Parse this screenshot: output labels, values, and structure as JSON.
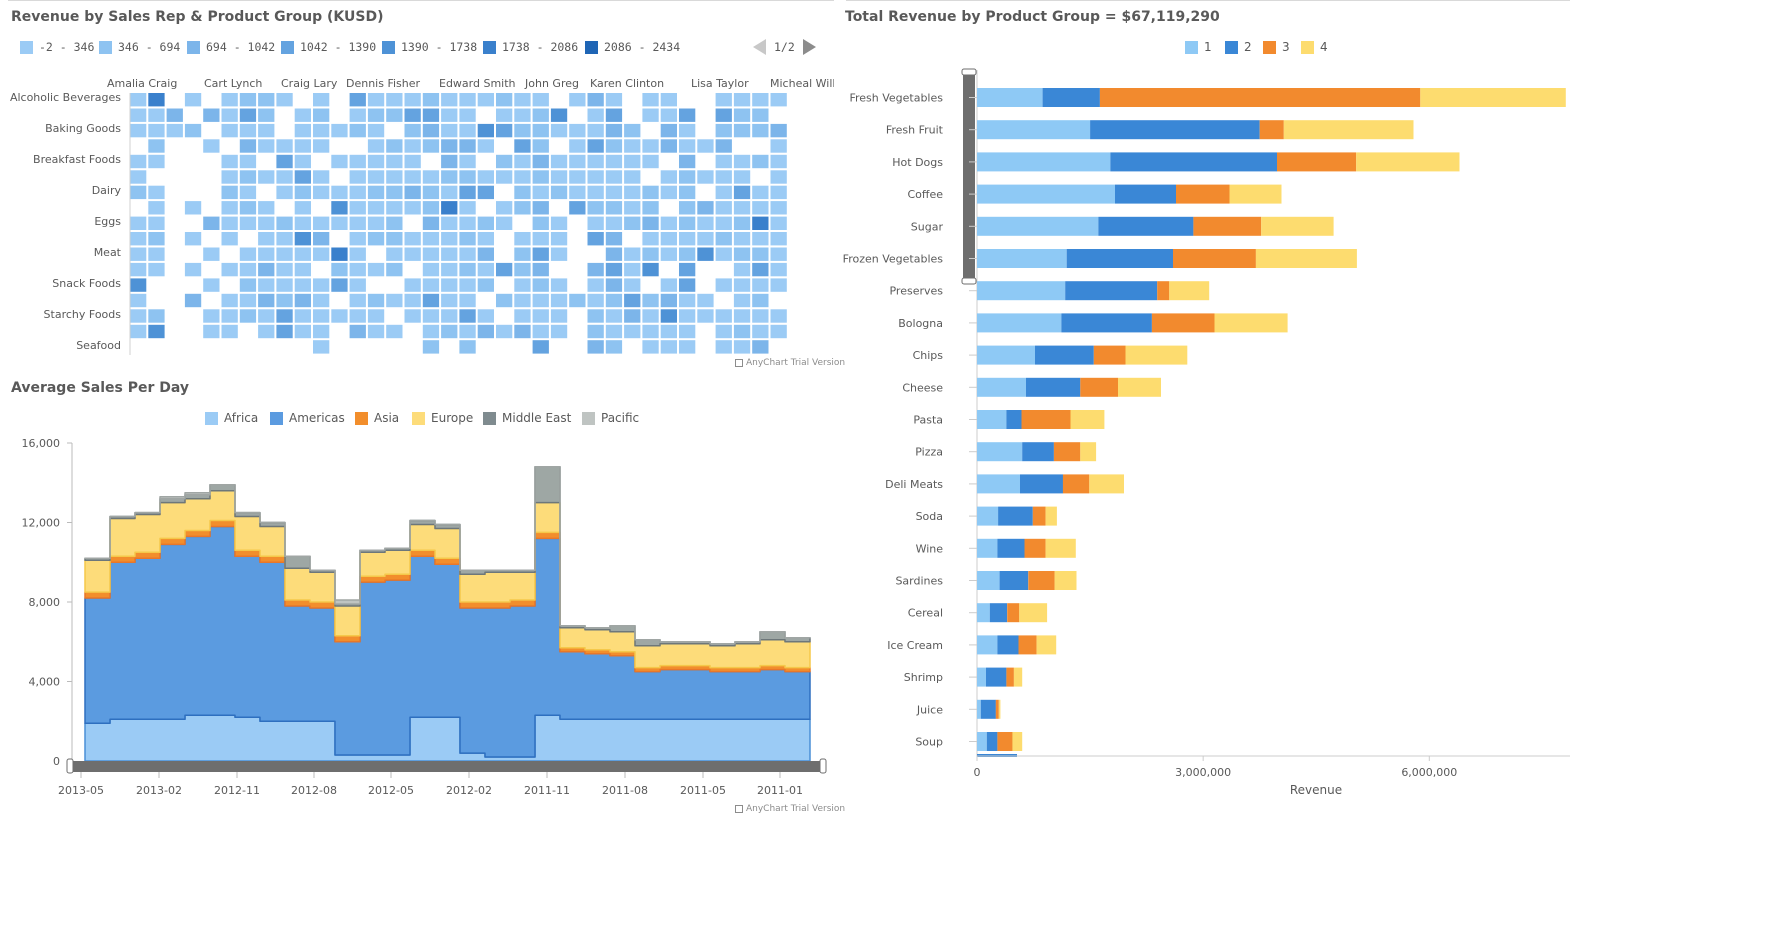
{
  "heatmap": {
    "title": "Revenue by Sales Rep & Product Group (KUSD)",
    "legend": [
      {
        "label": "-2 - 346",
        "color": "#9bcbf5"
      },
      {
        "label": "346 - 694",
        "color": "#8ec3f1"
      },
      {
        "label": "694 - 1042",
        "color": "#7cb5ea"
      },
      {
        "label": "1042 - 1390",
        "color": "#64a3e0"
      },
      {
        "label": "1390 - 1738",
        "color": "#4e92d6"
      },
      {
        "label": "1738 - 2086",
        "color": "#3a80cc"
      },
      {
        "label": "2086 - 2434",
        "color": "#1f65b5"
      }
    ],
    "pager": "1/2",
    "reps": [
      "Amalia Craig",
      "Cart Lynch",
      "Craig Lary",
      "Dennis Fisher",
      "Edward Smith",
      "John Greg",
      "Karen Clinton",
      "Lisa Taylor",
      "Micheal William"
    ],
    "groups": [
      "Alcoholic Beverages",
      "Baking Goods",
      "Breakfast Foods",
      "Dairy",
      "Eggs",
      "Meat",
      "Snack Foods",
      "Starchy Foods",
      "Seafood"
    ],
    "watermark": "AnyChart Trial Version"
  },
  "area": {
    "title": "Average Sales Per Day",
    "legend": [
      {
        "label": "Africa",
        "color": "#9bcbf5"
      },
      {
        "label": "Americas",
        "color": "#5b9be0"
      },
      {
        "label": "Asia",
        "color": "#f28e2c"
      },
      {
        "label": "Europe",
        "color": "#fddc7a"
      },
      {
        "label": "Middle East",
        "color": "#7f8b8f"
      },
      {
        "label": "Pacific",
        "color": "#bfc4c2"
      }
    ],
    "y_ticks": [
      "16,000",
      "12,000",
      "8,000",
      "4,000",
      "0"
    ],
    "x_ticks": [
      "2013-05",
      "2013-02",
      "2012-11",
      "2012-08",
      "2012-05",
      "2012-02",
      "2011-11",
      "2011-08",
      "2011-05",
      "2011-01"
    ],
    "watermark": "AnyChart Trial Version"
  },
  "bar": {
    "title": "Total Revenue by Product Group = $67,119,290",
    "legend": [
      {
        "label": "1",
        "color": "#8ec9f5"
      },
      {
        "label": "2",
        "color": "#3a87d6"
      },
      {
        "label": "3",
        "color": "#f28a2e"
      },
      {
        "label": "4",
        "color": "#fddc6f"
      }
    ],
    "x_ticks": [
      "0",
      "3,000,000",
      "6,000,000"
    ],
    "xlabel": "Revenue"
  },
  "chart_data": [
    {
      "type": "heatmap",
      "title": "Revenue by Sales Rep & Product Group (KUSD)",
      "x_labels": [
        "Amalia Craig",
        "Cart Lynch",
        "Craig Lary",
        "Dennis Fisher",
        "Edward Smith",
        "John Greg",
        "Karen Clinton",
        "Lisa Taylor",
        "Micheal William"
      ],
      "y_labels": [
        "Alcoholic Beverages",
        "Baking Goods",
        "Breakfast Foods",
        "Dairy",
        "Eggs",
        "Meat",
        "Snack Foods",
        "Starchy Foods",
        "Seafood"
      ],
      "legend_ranges": [
        "-2 - 346",
        "346 - 694",
        "694 - 1042",
        "1042 - 1390",
        "1390 - 1738",
        "1738 - 2086",
        "2086 - 2434"
      ]
    },
    {
      "type": "area",
      "title": "Average Sales Per Day",
      "x": [
        "2013-05",
        "2013-04",
        "2013-03",
        "2013-02",
        "2013-01",
        "2012-12",
        "2012-11",
        "2012-10",
        "2012-09",
        "2012-08",
        "2012-07",
        "2012-06",
        "2012-05",
        "2012-04",
        "2012-03",
        "2012-02",
        "2012-01",
        "2011-12",
        "2011-11",
        "2011-10",
        "2011-09",
        "2011-08",
        "2011-07",
        "2011-06",
        "2011-05",
        "2011-04",
        "2011-03",
        "2011-02",
        "2011-01"
      ],
      "series": [
        {
          "name": "Africa",
          "values": [
            1900,
            2100,
            2100,
            2100,
            2300,
            2300,
            2200,
            2000,
            2000,
            2000,
            300,
            300,
            300,
            2200,
            2200,
            400,
            200,
            200,
            2300,
            2100,
            2100,
            2100,
            2100,
            2100,
            2100,
            2100,
            2100,
            2100,
            2100
          ]
        },
        {
          "name": "Americas",
          "values": [
            6300,
            7900,
            8100,
            8800,
            9000,
            9500,
            8100,
            8000,
            5800,
            5700,
            5700,
            8700,
            8800,
            8100,
            7700,
            7300,
            7500,
            7600,
            8900,
            3400,
            3300,
            3200,
            2400,
            2500,
            2500,
            2400,
            2400,
            2500,
            2400
          ]
        },
        {
          "name": "Asia",
          "values": [
            300,
            300,
            300,
            300,
            300,
            300,
            300,
            300,
            300,
            300,
            300,
            300,
            300,
            300,
            300,
            300,
            300,
            300,
            300,
            200,
            200,
            200,
            200,
            200,
            200,
            200,
            200,
            200,
            200
          ]
        },
        {
          "name": "Europe",
          "values": [
            1600,
            1900,
            1900,
            1800,
            1600,
            1500,
            1700,
            1500,
            1600,
            1500,
            1500,
            1200,
            1200,
            1300,
            1500,
            1400,
            1500,
            1400,
            1500,
            1000,
            1000,
            1000,
            1100,
            1100,
            1100,
            1100,
            1200,
            1300,
            1300
          ]
        },
        {
          "name": "Middle East",
          "values": [
            100,
            100,
            100,
            200,
            200,
            300,
            200,
            200,
            600,
            100,
            100,
            100,
            100,
            200,
            200,
            200,
            100,
            100,
            1800,
            100,
            100,
            300,
            300,
            100,
            100,
            100,
            100,
            400,
            200
          ]
        },
        {
          "name": "Pacific",
          "values": [
            0,
            0,
            0,
            100,
            100,
            0,
            0,
            0,
            0,
            0,
            200,
            0,
            0,
            0,
            0,
            0,
            0,
            0,
            0,
            0,
            0,
            0,
            0,
            0,
            0,
            0,
            0,
            0,
            0
          ]
        }
      ],
      "ylim": [
        0,
        16000
      ],
      "legend": "top"
    },
    {
      "type": "bar",
      "orientation": "horizontal",
      "stacked": true,
      "title": "Total Revenue by Product Group = $67,119,290",
      "xlabel": "Revenue",
      "xlim": [
        0,
        7800000
      ],
      "categories": [
        "Fresh Vegetables",
        "Fresh Fruit",
        "Hot Dogs",
        "Coffee",
        "Sugar",
        "Frozen Vegetables",
        "Preserves",
        "Bologna",
        "Chips",
        "Cheese",
        "Pasta",
        "Pizza",
        "Deli Meats",
        "Soda",
        "Wine",
        "Sardines",
        "Cereal",
        "Ice Cream",
        "Shrimp",
        "Juice",
        "Soup"
      ],
      "series": [
        {
          "name": "1",
          "values": [
            870000,
            1500000,
            1770000,
            1830000,
            1610000,
            1190000,
            1170000,
            1120000,
            770000,
            650000,
            390000,
            600000,
            570000,
            280000,
            270000,
            300000,
            170000,
            270000,
            120000,
            50000,
            130000
          ]
        },
        {
          "name": "2",
          "values": [
            760000,
            2250000,
            2210000,
            810000,
            1260000,
            1410000,
            1220000,
            1200000,
            780000,
            720000,
            200000,
            420000,
            570000,
            460000,
            360000,
            380000,
            230000,
            280000,
            270000,
            200000,
            140000
          ]
        },
        {
          "name": "3",
          "values": [
            4250000,
            320000,
            1050000,
            710000,
            900000,
            1100000,
            160000,
            830000,
            420000,
            500000,
            650000,
            350000,
            350000,
            170000,
            280000,
            350000,
            160000,
            240000,
            100000,
            40000,
            200000
          ]
        },
        {
          "name": "4",
          "values": [
            1930000,
            1720000,
            1370000,
            690000,
            960000,
            1340000,
            530000,
            970000,
            820000,
            570000,
            450000,
            210000,
            460000,
            150000,
            400000,
            290000,
            370000,
            260000,
            110000,
            20000,
            130000
          ]
        }
      ],
      "legend": "top"
    }
  ]
}
